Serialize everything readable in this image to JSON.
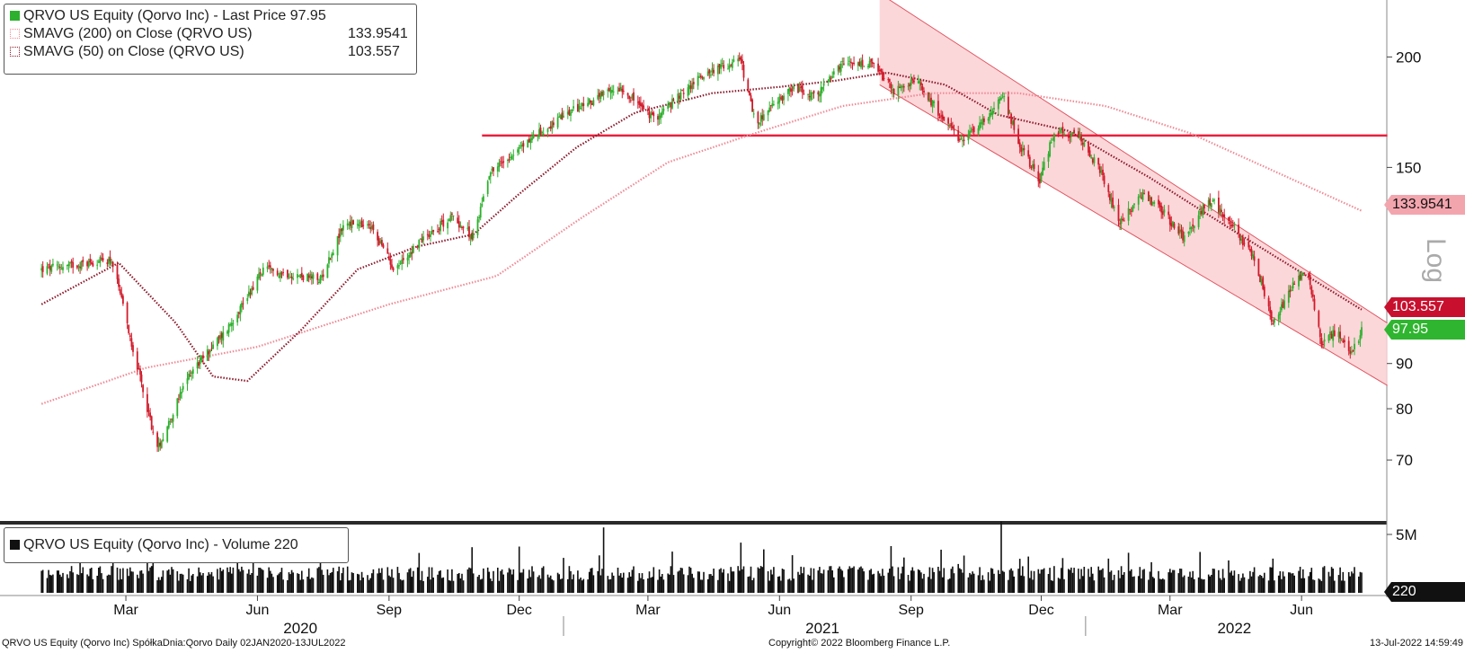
{
  "chart_data": {
    "type": "candlestick",
    "ticker": "QRVO US Equity",
    "y_scale": "log",
    "y_axis_label": "Log",
    "y_ticks": [
      70,
      80,
      90,
      150,
      200
    ],
    "x_range": [
      "2020-01-02",
      "2022-07-13"
    ],
    "month_ticks": [
      {
        "date": "2020-03-01",
        "label": "Mar"
      },
      {
        "date": "2020-06-01",
        "label": "Jun"
      },
      {
        "date": "2020-09-01",
        "label": "Sep"
      },
      {
        "date": "2020-12-01",
        "label": "Dec"
      },
      {
        "date": "2021-03-01",
        "label": "Mar"
      },
      {
        "date": "2021-06-01",
        "label": "Jun"
      },
      {
        "date": "2021-09-01",
        "label": "Sep"
      },
      {
        "date": "2021-12-01",
        "label": "Dec"
      },
      {
        "date": "2022-03-01",
        "label": "Mar"
      },
      {
        "date": "2022-06-01",
        "label": "Jun"
      }
    ],
    "year_labels": [
      {
        "date": "2020-07-01",
        "label": "2020"
      },
      {
        "date": "2021-07-01",
        "label": "2021"
      },
      {
        "date": "2022-04-15",
        "label": "2022"
      }
    ],
    "price_anchors": [
      {
        "date": "2020-01-02",
        "close": 115
      },
      {
        "date": "2020-02-20",
        "close": 118
      },
      {
        "date": "2020-03-05",
        "close": 95
      },
      {
        "date": "2020-03-23",
        "close": 72
      },
      {
        "date": "2020-04-15",
        "close": 88
      },
      {
        "date": "2020-05-10",
        "close": 98
      },
      {
        "date": "2020-06-05",
        "close": 115
      },
      {
        "date": "2020-07-15",
        "close": 112
      },
      {
        "date": "2020-08-01",
        "close": 130
      },
      {
        "date": "2020-08-20",
        "close": 128
      },
      {
        "date": "2020-09-05",
        "close": 115
      },
      {
        "date": "2020-09-25",
        "close": 125
      },
      {
        "date": "2020-10-15",
        "close": 132
      },
      {
        "date": "2020-10-30",
        "close": 125
      },
      {
        "date": "2020-11-10",
        "close": 148
      },
      {
        "date": "2020-12-10",
        "close": 162
      },
      {
        "date": "2021-01-10",
        "close": 175
      },
      {
        "date": "2021-02-10",
        "close": 185
      },
      {
        "date": "2021-03-05",
        "close": 170
      },
      {
        "date": "2021-04-10",
        "close": 192
      },
      {
        "date": "2021-05-05",
        "close": 198
      },
      {
        "date": "2021-05-15",
        "close": 168
      },
      {
        "date": "2021-06-10",
        "close": 185
      },
      {
        "date": "2021-06-25",
        "close": 180
      },
      {
        "date": "2021-07-15",
        "close": 196
      },
      {
        "date": "2021-08-05",
        "close": 196
      },
      {
        "date": "2021-08-20",
        "close": 183
      },
      {
        "date": "2021-09-05",
        "close": 188
      },
      {
        "date": "2021-10-05",
        "close": 160
      },
      {
        "date": "2021-10-25",
        "close": 172
      },
      {
        "date": "2021-11-05",
        "close": 180
      },
      {
        "date": "2021-11-15",
        "close": 160
      },
      {
        "date": "2021-11-30",
        "close": 145
      },
      {
        "date": "2021-12-10",
        "close": 165
      },
      {
        "date": "2021-12-28",
        "close": 162
      },
      {
        "date": "2022-01-10",
        "close": 150
      },
      {
        "date": "2022-01-25",
        "close": 130
      },
      {
        "date": "2022-02-10",
        "close": 140
      },
      {
        "date": "2022-02-25",
        "close": 133
      },
      {
        "date": "2022-03-10",
        "close": 125
      },
      {
        "date": "2022-03-30",
        "close": 138
      },
      {
        "date": "2022-04-15",
        "close": 128
      },
      {
        "date": "2022-04-30",
        "close": 117
      },
      {
        "date": "2022-05-12",
        "close": 100
      },
      {
        "date": "2022-05-25",
        "close": 110
      },
      {
        "date": "2022-06-05",
        "close": 115
      },
      {
        "date": "2022-06-15",
        "close": 95
      },
      {
        "date": "2022-06-25",
        "close": 98
      },
      {
        "date": "2022-07-05",
        "close": 92
      },
      {
        "date": "2022-07-13",
        "close": 97.95
      }
    ],
    "sma50_anchors": [
      {
        "date": "2020-01-02",
        "value": 105
      },
      {
        "date": "2020-02-25",
        "value": 117
      },
      {
        "date": "2020-04-05",
        "value": 100
      },
      {
        "date": "2020-05-01",
        "value": 87
      },
      {
        "date": "2020-05-25",
        "value": 86
      },
      {
        "date": "2020-07-01",
        "value": 98
      },
      {
        "date": "2020-08-10",
        "value": 115
      },
      {
        "date": "2020-09-20",
        "value": 122
      },
      {
        "date": "2020-10-30",
        "value": 126
      },
      {
        "date": "2020-12-01",
        "value": 140
      },
      {
        "date": "2021-01-10",
        "value": 158
      },
      {
        "date": "2021-02-20",
        "value": 173
      },
      {
        "date": "2021-04-15",
        "value": 182
      },
      {
        "date": "2021-06-01",
        "value": 185
      },
      {
        "date": "2021-07-10",
        "value": 188
      },
      {
        "date": "2021-08-15",
        "value": 192
      },
      {
        "date": "2021-09-25",
        "value": 186
      },
      {
        "date": "2021-11-01",
        "value": 172
      },
      {
        "date": "2021-12-20",
        "value": 165
      },
      {
        "date": "2022-02-15",
        "value": 146
      },
      {
        "date": "2022-04-15",
        "value": 127
      },
      {
        "date": "2022-07-13",
        "value": 103.557
      }
    ],
    "sma200_anchors": [
      {
        "date": "2020-01-02",
        "value": 81
      },
      {
        "date": "2020-03-15",
        "value": 89
      },
      {
        "date": "2020-06-01",
        "value": 94
      },
      {
        "date": "2020-09-01",
        "value": 105
      },
      {
        "date": "2020-11-15",
        "value": 113
      },
      {
        "date": "2021-01-15",
        "value": 132
      },
      {
        "date": "2021-03-15",
        "value": 152
      },
      {
        "date": "2021-05-15",
        "value": 164
      },
      {
        "date": "2021-07-15",
        "value": 176
      },
      {
        "date": "2021-09-15",
        "value": 182
      },
      {
        "date": "2021-11-15",
        "value": 182
      },
      {
        "date": "2022-01-15",
        "value": 176
      },
      {
        "date": "2022-03-15",
        "value": 164
      },
      {
        "date": "2022-05-15",
        "value": 148
      },
      {
        "date": "2022-07-13",
        "value": 133.9541
      }
    ],
    "resistance_line": {
      "value": 163,
      "from": "2020-11-05",
      "to": "2022-07-31",
      "color": "#e8203c"
    },
    "channel": {
      "upper_start": {
        "date": "2021-08-10",
        "value": 236
      },
      "upper_end": {
        "date": "2022-07-31",
        "value": 100
      },
      "lower_start": {
        "date": "2021-08-10",
        "value": 186
      },
      "lower_end": {
        "date": "2022-07-31",
        "value": 85
      },
      "fill": "#fbd0d3",
      "edge": "#e05561"
    },
    "volume": {
      "tick_label": "5M",
      "tick_value": 5000000,
      "max": 6000000,
      "last": 220
    },
    "colors": {
      "up": "#2db02d",
      "down": "#d11a2a",
      "sma50": "#8b1a2b",
      "sma200": "#f08a95",
      "volume": "#111111"
    }
  },
  "legend": {
    "price_title": "QRVO US Equity (Qorvo Inc) - Last Price",
    "price_value": "97.95",
    "sma200_title": "SMAVG (200)  on Close (QRVO US)",
    "sma200_value": "133.9541",
    "sma50_title": "SMAVG (50)  on Close (QRVO US)",
    "sma50_value": "103.557",
    "volume_title": "QRVO US Equity (Qorvo Inc) - Volume",
    "volume_value": "220"
  },
  "tags": {
    "sma200": "133.9541",
    "sma50": "103.557",
    "last": "97.95",
    "volume": "220"
  },
  "footer": {
    "left": "QRVO US Equity (Qorvo Inc) SpółkaDnia:Qorvo  Daily 02JAN2020-13JUL2022",
    "center": "Copyright© 2022 Bloomberg Finance L.P.",
    "right": "13-Jul-2022 14:59:49"
  }
}
